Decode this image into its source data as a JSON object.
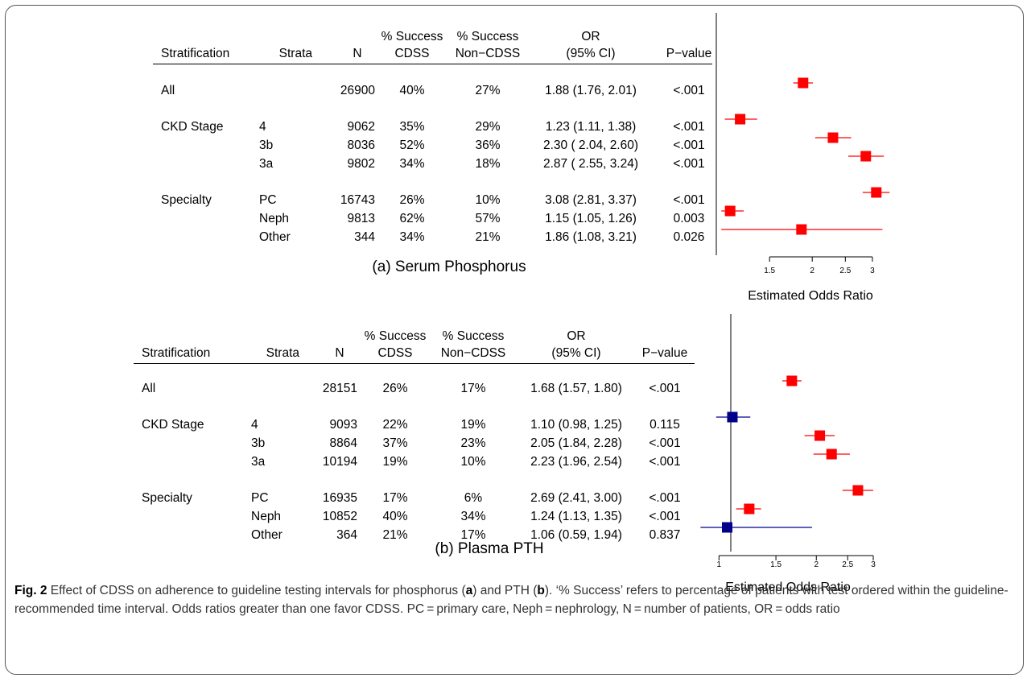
{
  "panels": [
    {
      "id": "a",
      "subtitle": "(a) Serum Phosphorus",
      "headers": {
        "stratification": "Stratification",
        "strata": "Strata",
        "n": "N",
        "cdss": [
          "% Success",
          "CDSS"
        ],
        "noncdss": [
          "% Success",
          "Non−CDSS"
        ],
        "or": [
          "OR",
          "(95% CI)"
        ],
        "p": "P−value"
      },
      "rows": [
        {
          "group": "All",
          "strata": "",
          "n": "26900",
          "cdss": "40%",
          "noncdss": "27%",
          "or_text": "1.88 (1.76, 2.01)",
          "p": "<.001"
        },
        {
          "group": "CKD Stage",
          "strata": "4",
          "n": "9062",
          "cdss": "35%",
          "noncdss": "29%",
          "or_text": "1.23 (1.11, 1.38)",
          "p": "<.001"
        },
        {
          "group": "",
          "strata": "3b",
          "n": "8036",
          "cdss": "52%",
          "noncdss": "36%",
          "or_text": "2.30 ( 2.04, 2.60)",
          "p": "<.001"
        },
        {
          "group": "",
          "strata": "3a",
          "n": "9802",
          "cdss": "34%",
          "noncdss": "18%",
          "or_text": "2.87 ( 2.55, 3.24)",
          "p": "<.001"
        },
        {
          "group": "Specialty",
          "strata": "PC",
          "n": "16743",
          "cdss": "26%",
          "noncdss": "10%",
          "or_text": "3.08 (2.81, 3.37)",
          "p": "<.001"
        },
        {
          "group": "",
          "strata": "Neph",
          "n": "9813",
          "cdss": "62%",
          "noncdss": "57%",
          "or_text": "1.15 (1.05, 1.26)",
          "p": "0.003"
        },
        {
          "group": "",
          "strata": "Other",
          "n": "344",
          "cdss": "34%",
          "noncdss": "21%",
          "or_text": "1.86 (1.08, 3.21)",
          "p": "0.026"
        }
      ],
      "chart_data": {
        "type": "forest",
        "xlabel": "Estimated Odds Ratio",
        "xscale": "log",
        "xlim": [
          1.1,
          3.4
        ],
        "xticks": [
          "1.5",
          "2",
          "2.5",
          "3"
        ],
        "reference_line": 1,
        "points": [
          {
            "or": 1.88,
            "lo": 1.76,
            "hi": 2.01,
            "color": "#ff0000"
          },
          {
            "or": 1.23,
            "lo": 1.11,
            "hi": 1.38,
            "color": "#ff0000"
          },
          {
            "or": 2.3,
            "lo": 2.04,
            "hi": 2.6,
            "color": "#ff0000"
          },
          {
            "or": 2.87,
            "lo": 2.55,
            "hi": 3.24,
            "color": "#ff0000"
          },
          {
            "or": 3.08,
            "lo": 2.81,
            "hi": 3.37,
            "color": "#ff0000"
          },
          {
            "or": 1.15,
            "lo": 1.05,
            "hi": 1.26,
            "color": "#ff0000"
          },
          {
            "or": 1.86,
            "lo": 1.08,
            "hi": 3.21,
            "color": "#ff0000"
          }
        ]
      }
    },
    {
      "id": "b",
      "subtitle": "(b) Plasma PTH",
      "headers": {
        "stratification": "Stratification",
        "strata": "Strata",
        "n": "N",
        "cdss": [
          "% Success",
          "CDSS"
        ],
        "noncdss": [
          "% Success",
          "Non−CDSS"
        ],
        "or": [
          "OR",
          "(95% CI)"
        ],
        "p": "P−value"
      },
      "rows": [
        {
          "group": "All",
          "strata": "",
          "n": "28151",
          "cdss": "26%",
          "noncdss": "17%",
          "or_text": "1.68 (1.57, 1.80)",
          "p": "<.001"
        },
        {
          "group": "CKD Stage",
          "strata": "4",
          "n": "9093",
          "cdss": "22%",
          "noncdss": "19%",
          "or_text": "1.10 (0.98, 1.25)",
          "p": "0.115"
        },
        {
          "group": "",
          "strata": "3b",
          "n": "8864",
          "cdss": "37%",
          "noncdss": "23%",
          "or_text": "2.05 (1.84, 2.28)",
          "p": "<.001"
        },
        {
          "group": "",
          "strata": "3a",
          "n": "10194",
          "cdss": "19%",
          "noncdss": "10%",
          "or_text": "2.23 (1.96, 2.54)",
          "p": "<.001"
        },
        {
          "group": "Specialty",
          "strata": "PC",
          "n": "16935",
          "cdss": "17%",
          "noncdss": "6%",
          "or_text": "2.69 (2.41, 3.00)",
          "p": "<.001"
        },
        {
          "group": "",
          "strata": "Neph",
          "n": "10852",
          "cdss": "40%",
          "noncdss": "34%",
          "or_text": "1.24 (1.13, 1.35)",
          "p": "<.001"
        },
        {
          "group": "",
          "strata": "Other",
          "n": "364",
          "cdss": "21%",
          "noncdss": "17%",
          "or_text": "1.06 (0.59, 1.94)",
          "p": "0.837"
        }
      ],
      "chart_data": {
        "type": "forest",
        "xlabel": "Estimated Odds Ratio",
        "xscale": "log",
        "xlim": [
          0.89,
          3.0
        ],
        "xticks": [
          "1",
          "1.5",
          "2",
          "2.5",
          "3"
        ],
        "reference_line": 1,
        "points": [
          {
            "or": 1.68,
            "lo": 1.57,
            "hi": 1.8,
            "color": "#ff0000"
          },
          {
            "or": 1.1,
            "lo": 0.98,
            "hi": 1.25,
            "color": "#00008b"
          },
          {
            "or": 2.05,
            "lo": 1.84,
            "hi": 2.28,
            "color": "#ff0000"
          },
          {
            "or": 2.23,
            "lo": 1.96,
            "hi": 2.54,
            "color": "#ff0000"
          },
          {
            "or": 2.69,
            "lo": 2.41,
            "hi": 3.0,
            "color": "#ff0000"
          },
          {
            "or": 1.24,
            "lo": 1.13,
            "hi": 1.35,
            "color": "#ff0000"
          },
          {
            "or": 1.06,
            "lo": 0.59,
            "hi": 1.94,
            "color": "#00008b"
          }
        ]
      }
    }
  ],
  "caption": {
    "label": "Fig. 2",
    "parts": [
      {
        "text": " Effect of CDSS on adherence to guideline testing intervals for phosphorus (",
        "bold": false
      },
      {
        "text": "a",
        "bold": true
      },
      {
        "text": ") and PTH (",
        "bold": false
      },
      {
        "text": "b",
        "bold": true
      },
      {
        "text": "). ‘% Success’ refers to percentage of patients with test ordered within the guideline-recommended time interval. Odds ratios greater than one favor CDSS. PC = primary care, Neph = nephrology, N = number of patients, OR = odds ratio",
        "bold": false
      }
    ]
  }
}
